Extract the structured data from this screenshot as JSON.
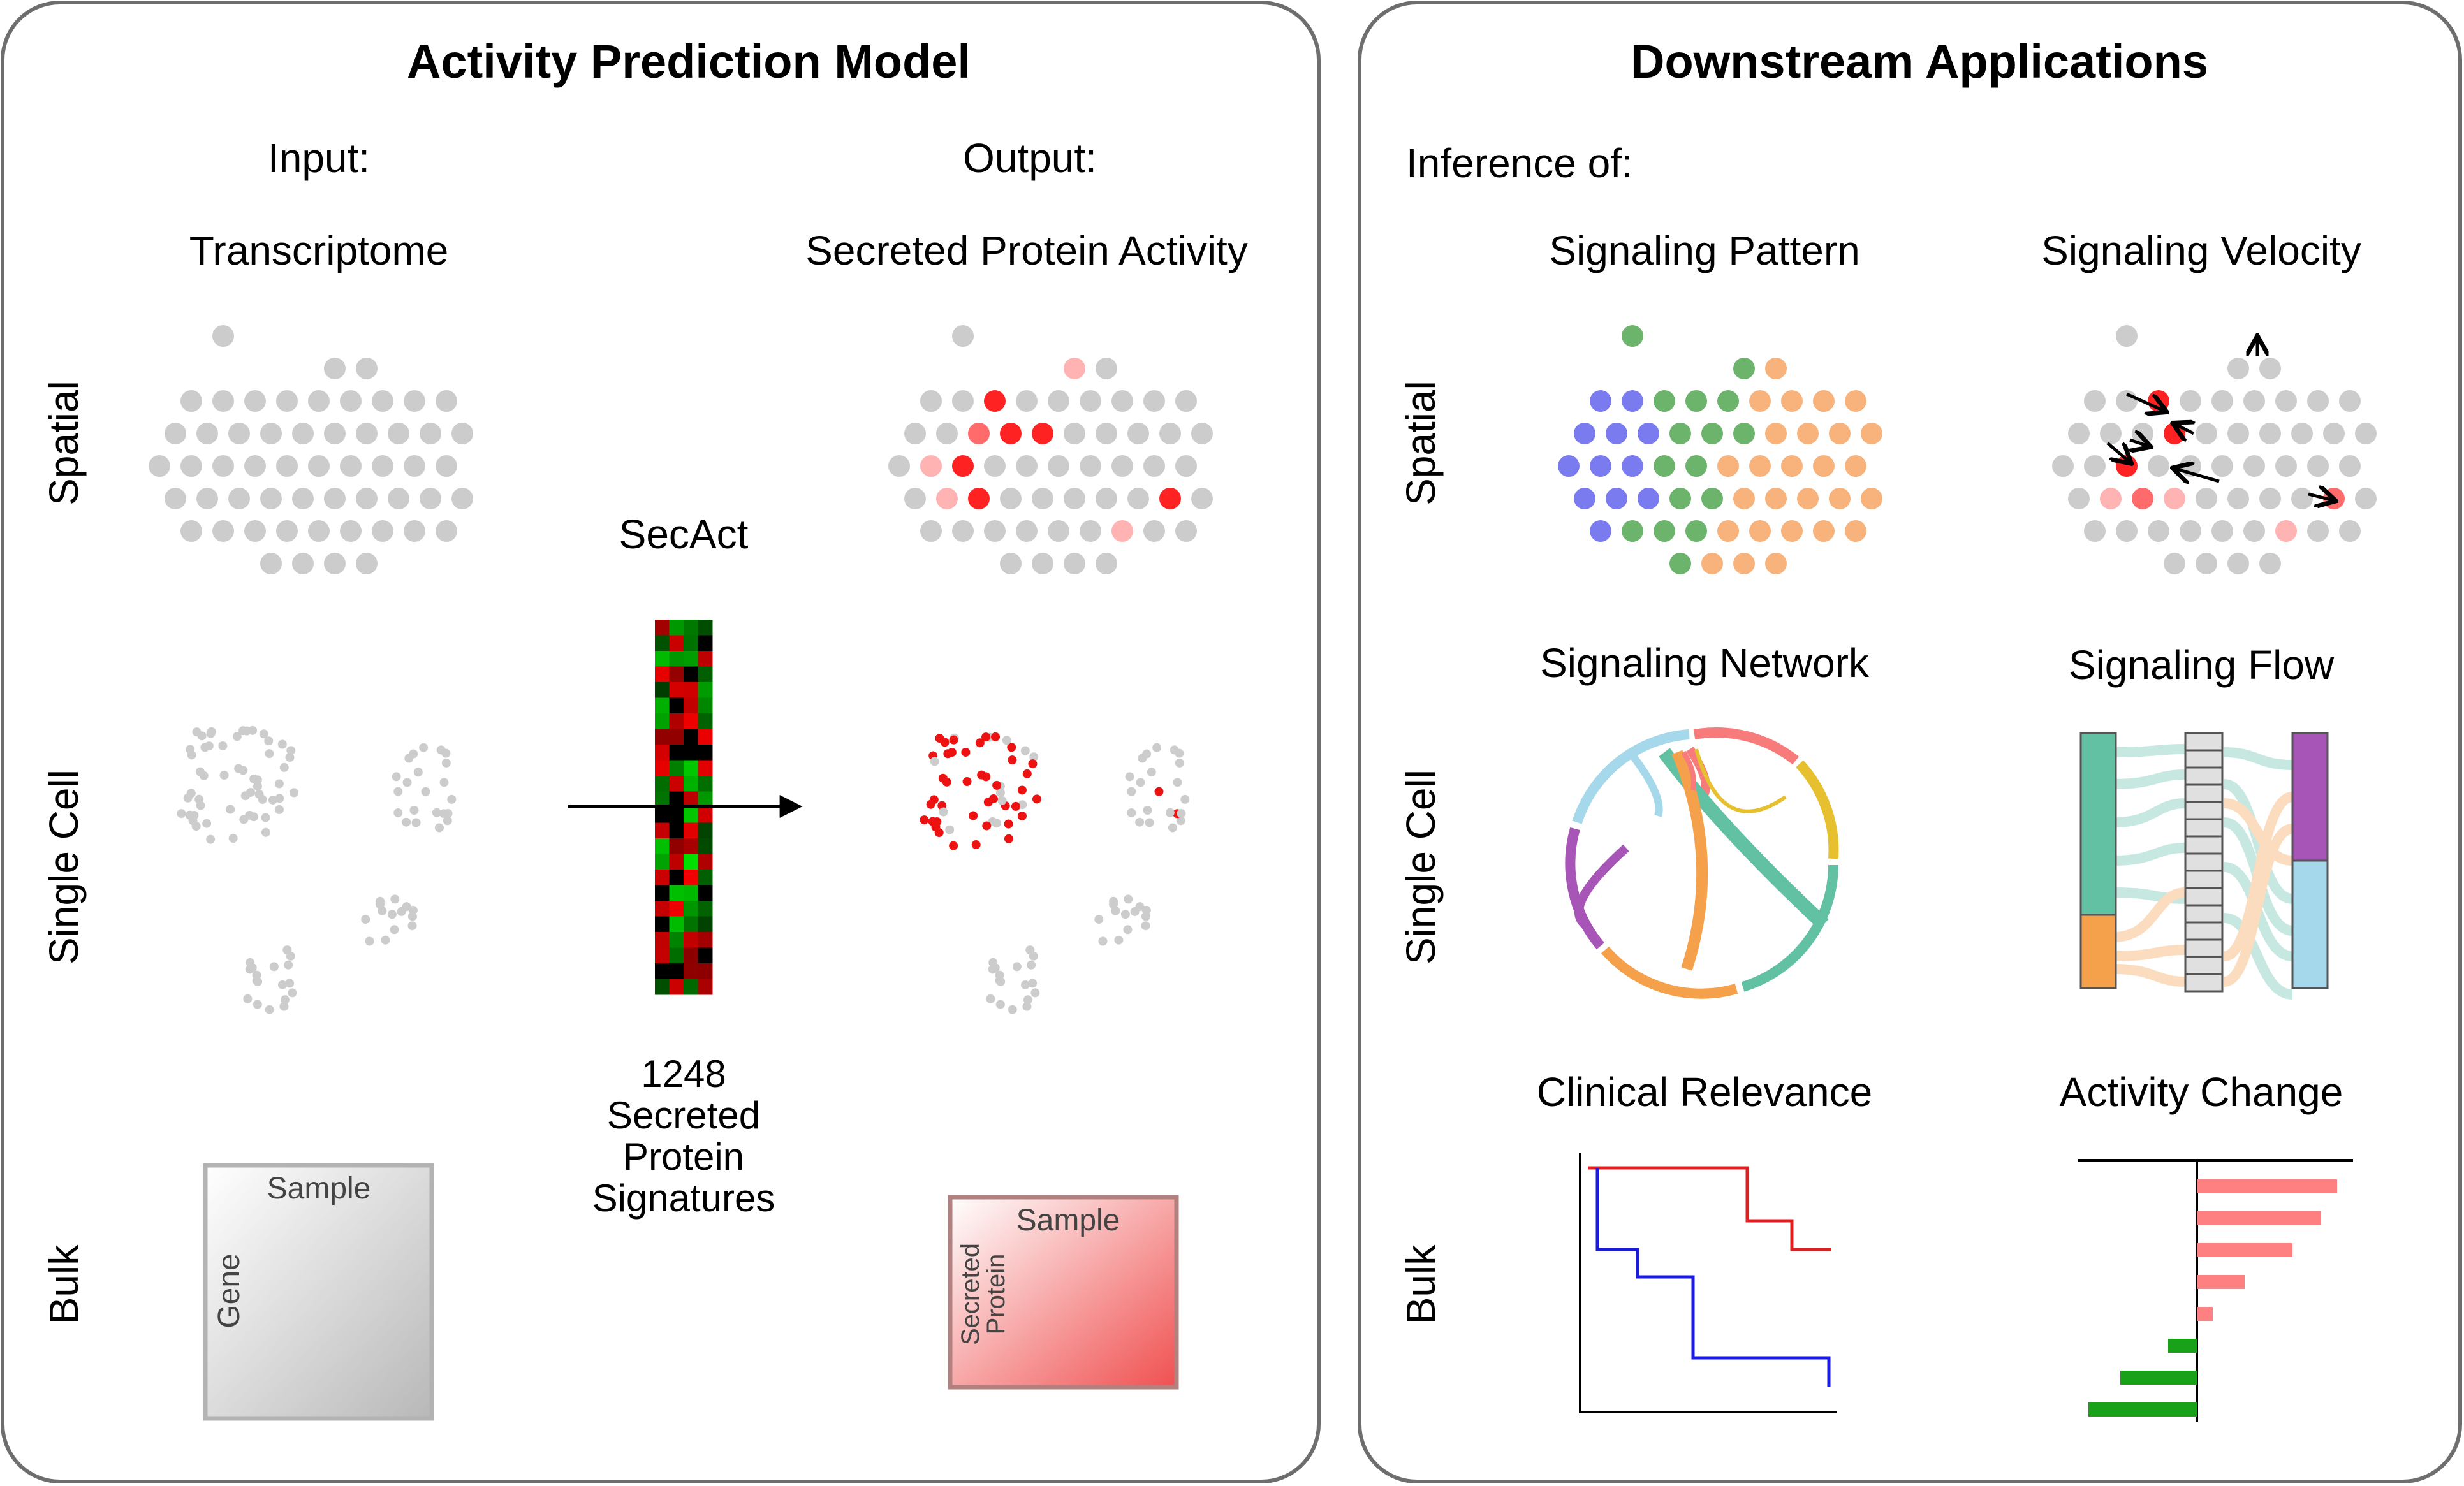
{
  "left_panel": {
    "title": "Activity Prediction Model",
    "input_label": "Input:",
    "input_name": "Transcriptome",
    "output_label": "Output:",
    "output_name": "Secreted Protein Activity",
    "row_labels": [
      "Spatial",
      "Single Cell",
      "Bulk"
    ],
    "model_name": "SecAct",
    "signatures_lines": [
      "1248",
      "Secreted",
      "Protein",
      "Signatures"
    ],
    "bulk_input": {
      "top": "Sample",
      "side": "Gene"
    },
    "bulk_output": {
      "top": "Sample",
      "side_lines": [
        "Secreted",
        "Protein"
      ]
    }
  },
  "right_panel": {
    "title": "Downstream Applications",
    "inference_label": "Inference of:",
    "row_labels": [
      "Spatial",
      "Single Cell",
      "Bulk"
    ],
    "apps": [
      "Signaling Pattern",
      "Signaling Velocity",
      "Signaling Network",
      "Signaling Flow",
      "Clinical Relevance",
      "Activity Change"
    ]
  },
  "colors": {
    "spot_gray": "#cccccc",
    "red_high": "#ff2222",
    "red_mid": "#ff6b6b",
    "red_low": "#ffb3b3",
    "pattern_blue": "#7b7bf0",
    "pattern_green": "#6cb36c",
    "pattern_orange": "#f7b37b",
    "network_colors": [
      "#f77b7b",
      "#e6c02e",
      "#62c0a3",
      "#f5a04a",
      "#a855b8",
      "#a5d8ea"
    ],
    "flow_colors": [
      "#62c0a3",
      "#f5a04a",
      "#a855b8",
      "#a5d8ea"
    ],
    "survival_red": "#e02020",
    "survival_blue": "#1a1ae0",
    "bar_pos": "#ff8080",
    "bar_neg": "#1aa11a"
  },
  "activity_change_values": [
    2.2,
    1.95,
    1.5,
    0.75,
    0.25,
    -0.45,
    -1.2,
    -1.7
  ]
}
